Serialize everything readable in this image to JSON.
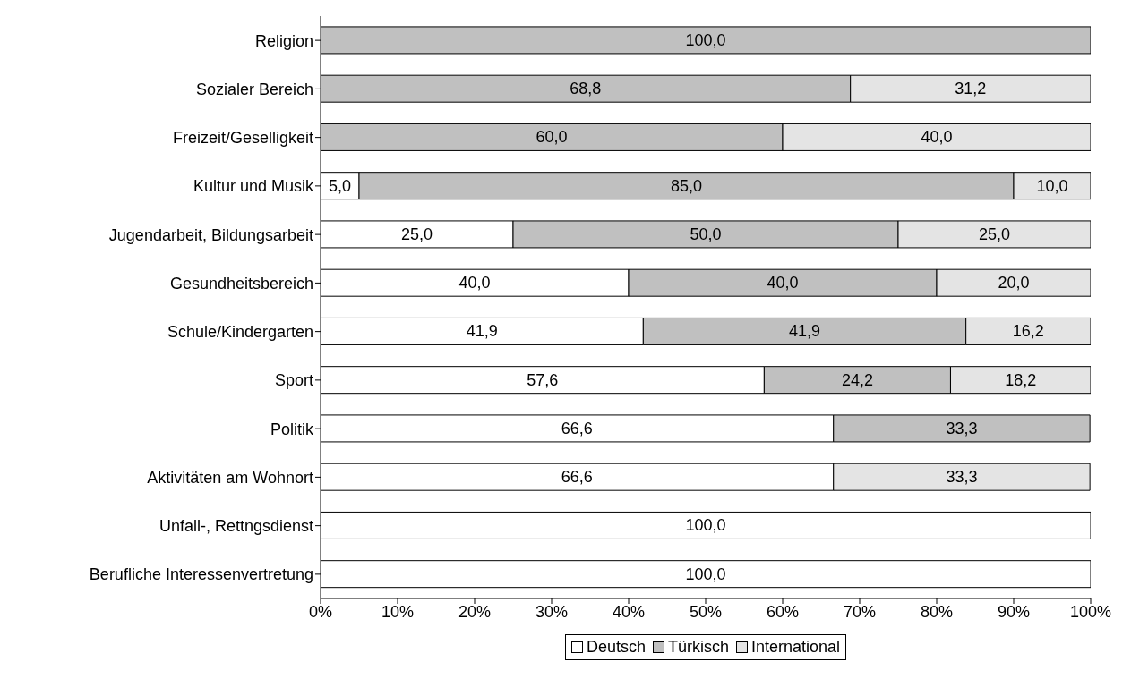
{
  "chart_data": {
    "type": "bar",
    "orientation": "horizontal",
    "stacked": true,
    "categories": [
      "Religion",
      "Sozialer Bereich",
      "Freizeit/Geselligkeit",
      "Kultur und Musik",
      "Jugendarbeit, Bildungsarbeit",
      "Gesundheitsbereich",
      "Schule/Kindergarten",
      "Sport",
      "Politik",
      "Aktivitäten am Wohnort",
      "Unfall-, Rettngsdienst",
      "Berufliche Interessenvertretung"
    ],
    "series": [
      {
        "name": "Deutsch",
        "color": "#ffffff",
        "values": [
          0,
          0,
          0,
          5,
          25,
          40,
          41.9,
          57.6,
          66.6,
          66.6,
          100,
          100
        ],
        "value_labels": [
          null,
          null,
          null,
          "5,0",
          "25,0",
          "40,0",
          "41,9",
          "57,6",
          "66,6",
          "66,6",
          "100,0",
          "100,0"
        ]
      },
      {
        "name": "Türkisch",
        "color": "#c0c0c0",
        "values": [
          100,
          68.8,
          60,
          85,
          50,
          40,
          41.9,
          24.2,
          33.3,
          0,
          0,
          0
        ],
        "value_labels": [
          "100,0",
          "68,8",
          "60,0",
          "85,0",
          "50,0",
          "40,0",
          "41,9",
          "24,2",
          "33,3",
          null,
          null,
          null
        ]
      },
      {
        "name": "International",
        "color": "#e4e4e4",
        "values": [
          0,
          31.2,
          40,
          10,
          25,
          20,
          16.2,
          18.2,
          0,
          33.3,
          0,
          0
        ],
        "value_labels": [
          null,
          "31,2",
          "40,0",
          "10,0",
          "25,0",
          "20,0",
          "16,2",
          "18,2",
          null,
          "33,3",
          null,
          null
        ]
      }
    ],
    "xlim": [
      0,
      100
    ],
    "xticks": [
      {
        "value": 0,
        "label": "0%"
      },
      {
        "value": 10,
        "label": "10%"
      },
      {
        "value": 20,
        "label": "20%"
      },
      {
        "value": 30,
        "label": "30%"
      },
      {
        "value": 40,
        "label": "40%"
      },
      {
        "value": 50,
        "label": "50%"
      },
      {
        "value": 60,
        "label": "60%"
      },
      {
        "value": 70,
        "label": "70%"
      },
      {
        "value": 80,
        "label": "80%"
      },
      {
        "value": 90,
        "label": "90%"
      },
      {
        "value": 100,
        "label": "100%"
      }
    ],
    "legend": "bottom",
    "grid": false
  }
}
